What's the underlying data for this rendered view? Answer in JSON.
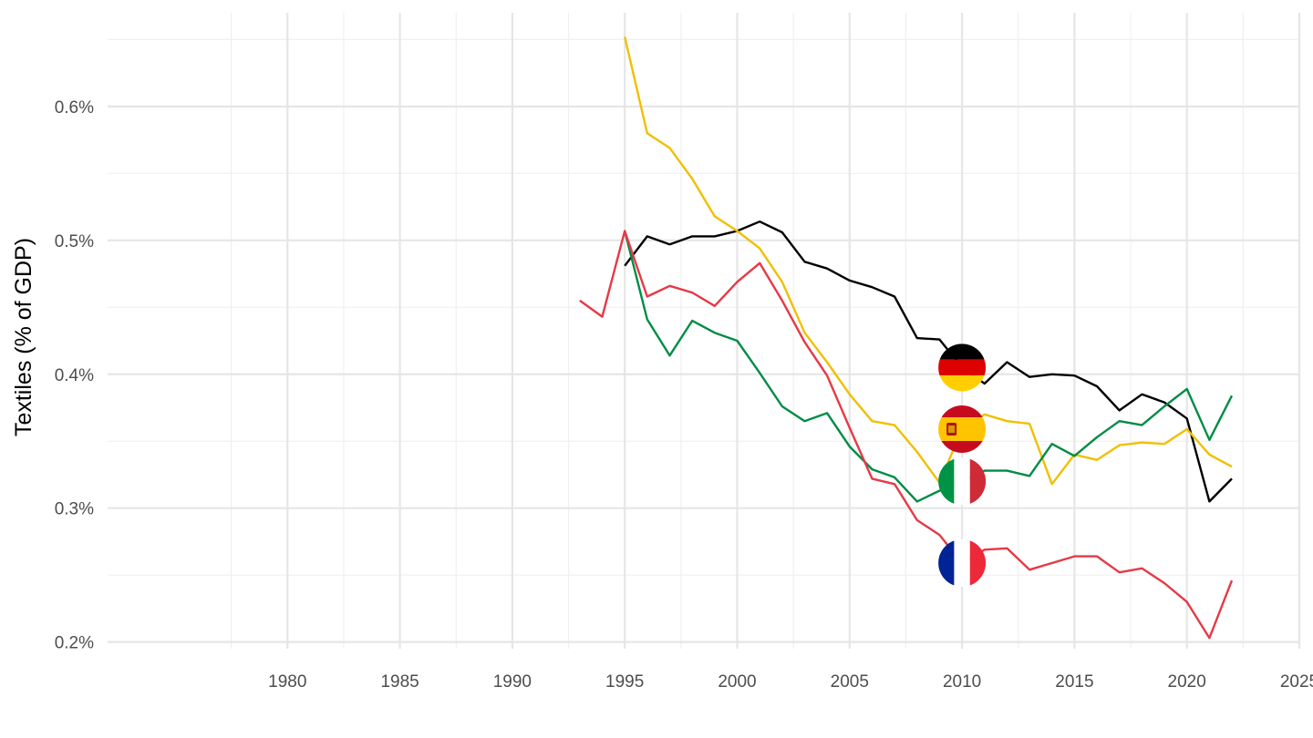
{
  "chart_data": {
    "type": "line",
    "title": "",
    "xlabel": "",
    "ylabel": "Textiles (% of GDP)",
    "xlim": [
      1972,
      2025
    ],
    "ylim": [
      0.195,
      0.67
    ],
    "x_ticks": [
      1980,
      1985,
      1990,
      1995,
      2000,
      2005,
      2010,
      2015,
      2020,
      2025
    ],
    "y_ticks": [
      0.2,
      0.3,
      0.4,
      0.5,
      0.6
    ],
    "y_tick_labels": [
      "0.2%",
      "0.3%",
      "0.4%",
      "0.5%",
      "0.6%"
    ],
    "grid": true,
    "legend": "flag icons placed at 2010 on each line",
    "series": [
      {
        "flag": "germany",
        "color": "#000000",
        "x": [
          1995,
          1996,
          1997,
          1998,
          1999,
          2000,
          2001,
          2002,
          2003,
          2004,
          2005,
          2006,
          2007,
          2008,
          2009,
          2010,
          2011,
          2012,
          2013,
          2014,
          2015,
          2016,
          2017,
          2018,
          2019,
          2020,
          2021,
          2022
        ],
        "values": [
          0.481,
          0.503,
          0.497,
          0.503,
          0.503,
          0.507,
          0.514,
          0.506,
          0.484,
          0.479,
          0.47,
          0.465,
          0.458,
          0.427,
          0.426,
          0.405,
          0.393,
          0.409,
          0.398,
          0.4,
          0.399,
          0.391,
          0.373,
          0.385,
          0.379,
          0.367,
          0.305,
          0.322
        ]
      },
      {
        "flag": "spain",
        "color": "#f1bf00",
        "x": [
          1995,
          1996,
          1997,
          1998,
          1999,
          2000,
          2001,
          2002,
          2003,
          2004,
          2005,
          2006,
          2007,
          2008,
          2009,
          2010,
          2011,
          2012,
          2013,
          2014,
          2015,
          2016,
          2017,
          2018,
          2019,
          2020,
          2021,
          2022
        ],
        "values": [
          0.652,
          0.58,
          0.569,
          0.546,
          0.518,
          0.507,
          0.494,
          0.469,
          0.431,
          0.409,
          0.385,
          0.365,
          0.362,
          0.342,
          0.319,
          0.359,
          0.37,
          0.365,
          0.363,
          0.318,
          0.34,
          0.336,
          0.347,
          0.349,
          0.348,
          0.359,
          0.34,
          0.331
        ]
      },
      {
        "flag": "italy",
        "color": "#008c45",
        "x": [
          1995,
          1996,
          1997,
          1998,
          1999,
          2000,
          2001,
          2002,
          2003,
          2004,
          2005,
          2006,
          2007,
          2008,
          2009,
          2010,
          2011,
          2012,
          2013,
          2014,
          2015,
          2016,
          2017,
          2018,
          2019,
          2020,
          2021,
          2022
        ],
        "values": [
          0.507,
          0.441,
          0.414,
          0.44,
          0.431,
          0.425,
          0.401,
          0.376,
          0.365,
          0.371,
          0.346,
          0.329,
          0.323,
          0.305,
          0.313,
          0.32,
          0.328,
          0.328,
          0.324,
          0.348,
          0.339,
          0.353,
          0.365,
          0.362,
          0.376,
          0.389,
          0.351,
          0.384
        ]
      },
      {
        "flag": "france",
        "color": "#e63946",
        "x": [
          1993,
          1994,
          1995,
          1996,
          1997,
          1998,
          1999,
          2000,
          2001,
          2002,
          2003,
          2004,
          2005,
          2006,
          2007,
          2008,
          2009,
          2010,
          2011,
          2012,
          2013,
          2014,
          2015,
          2016,
          2017,
          2018,
          2019,
          2020,
          2021,
          2022
        ],
        "values": [
          0.455,
          0.443,
          0.507,
          0.458,
          0.466,
          0.461,
          0.451,
          0.469,
          0.483,
          0.455,
          0.424,
          0.399,
          0.36,
          0.322,
          0.318,
          0.291,
          0.28,
          0.259,
          0.269,
          0.27,
          0.254,
          0.259,
          0.264,
          0.264,
          0.252,
          0.255,
          0.244,
          0.23,
          0.203,
          0.246
        ]
      }
    ]
  }
}
